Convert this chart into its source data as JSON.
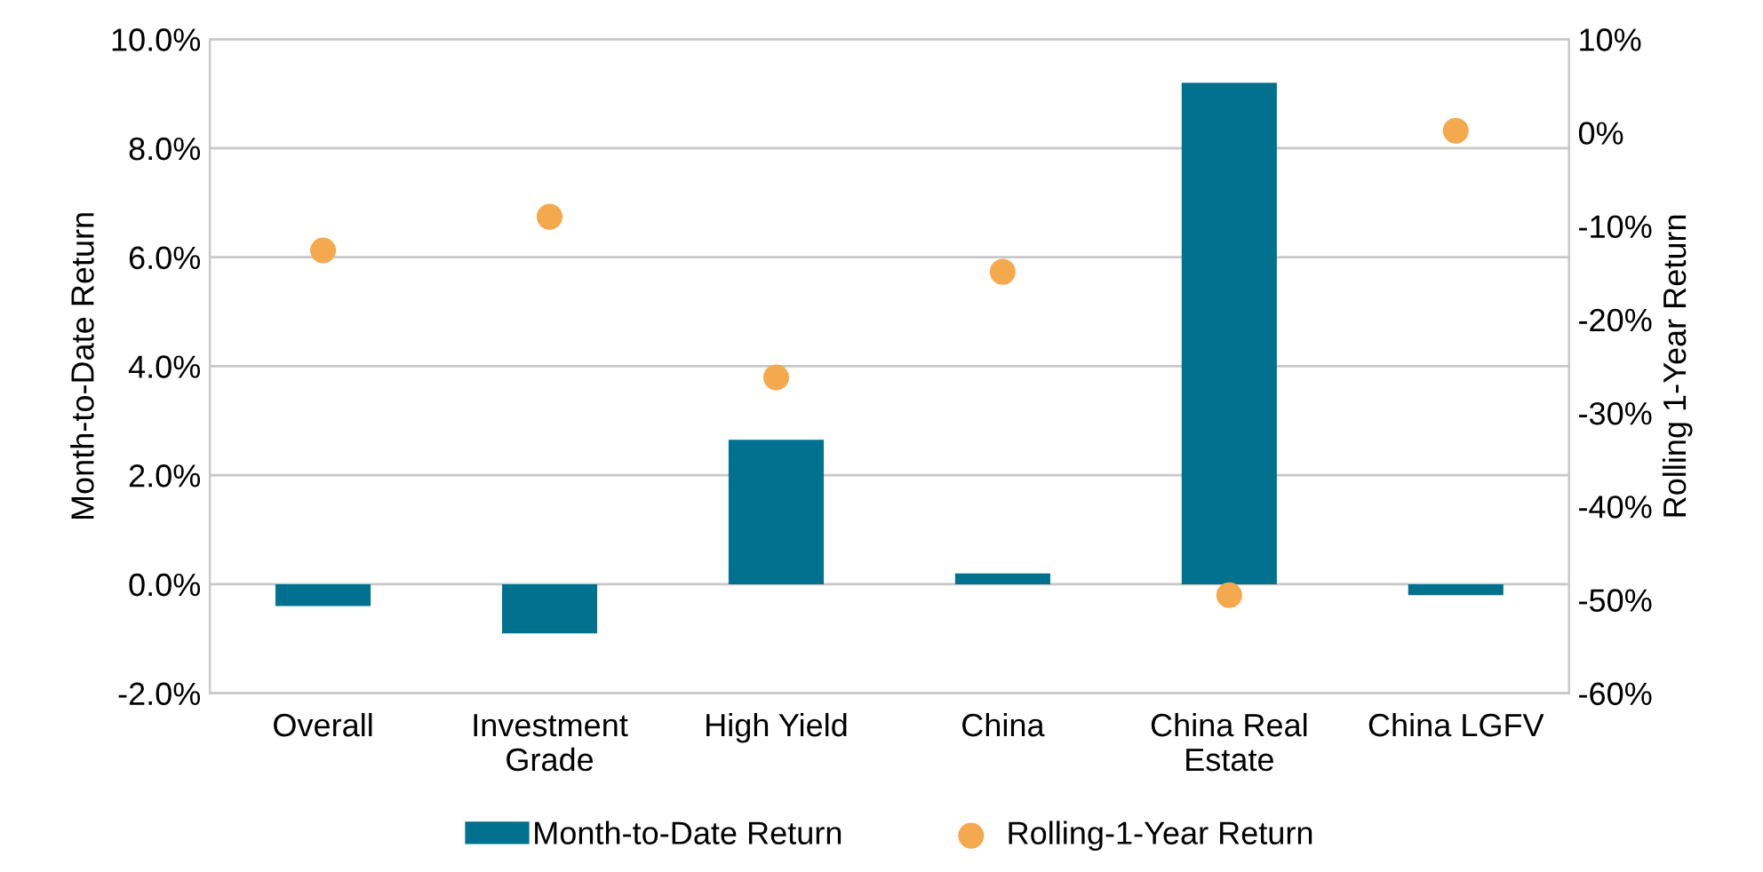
{
  "chart_data": {
    "type": "bar",
    "categories": [
      "Overall",
      "Investment\nGrade",
      "High Yield",
      "China",
      "China Real\nEstate",
      "China LGFV"
    ],
    "series": [
      {
        "name": "Month-to-Date Return",
        "color": "#00718f",
        "values": [
          -0.4,
          -0.9,
          2.65,
          0.2,
          9.2,
          -0.2
        ]
      },
      {
        "name": "Rolling-1-Year Return",
        "color": "#f5a94e",
        "type": "scatter",
        "axis": "y2",
        "values": [
          -12.6,
          -9.0,
          -26.2,
          -14.9,
          -49.5,
          0.2
        ]
      }
    ],
    "ylabel": "Month-to-Date Return",
    "y2label": "Rolling 1-Year Return",
    "ylim": [
      -2,
      10
    ],
    "yticks": [
      {
        "value": -2,
        "label": "-2.0%"
      },
      {
        "value": 0,
        "label": "0.0%"
      },
      {
        "value": 2,
        "label": "2.0%"
      },
      {
        "value": 4,
        "label": "4.0%"
      },
      {
        "value": 6,
        "label": "6.0%"
      },
      {
        "value": 8,
        "label": "8.0%"
      },
      {
        "value": 10,
        "label": "10.0%"
      }
    ],
    "y2lim": [
      -60,
      10
    ],
    "y2ticks": [
      {
        "value": -60,
        "label": "-60%"
      },
      {
        "value": -50,
        "label": "-50%"
      },
      {
        "value": -40,
        "label": "-40%"
      },
      {
        "value": -30,
        "label": "-30%"
      },
      {
        "value": -20,
        "label": "-20%"
      },
      {
        "value": -10,
        "label": "-10%"
      },
      {
        "value": 0,
        "label": "0%"
      },
      {
        "value": 10,
        "label": "10%"
      }
    ],
    "grid": "y",
    "legend": "bottom",
    "marker": "circle"
  }
}
